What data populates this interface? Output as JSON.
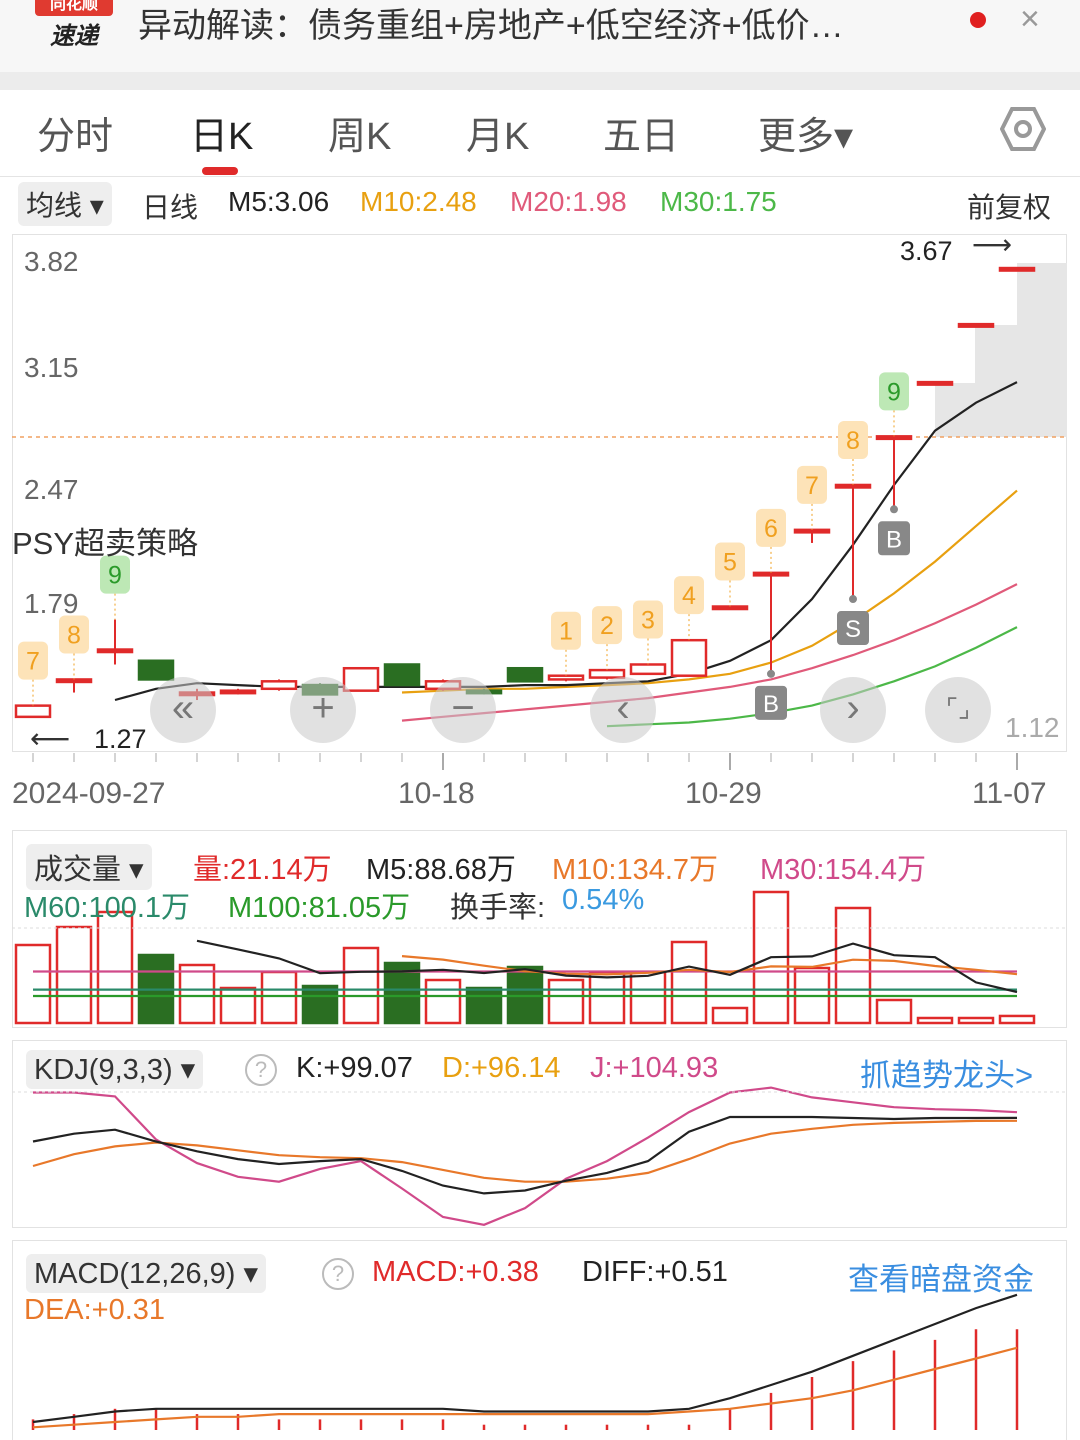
{
  "header": {
    "logo_top": "同花顺",
    "logo_bottom": "速递",
    "title": "异动解读：债务重组+房地产+低空经济+低价…",
    "close": "×"
  },
  "tabs": [
    {
      "label": "分时"
    },
    {
      "label": "日K",
      "active": true
    },
    {
      "label": "周K"
    },
    {
      "label": "月K"
    },
    {
      "label": "五日"
    },
    {
      "label": "更多▾"
    }
  ],
  "settings_icon": "hexagon-gear-icon",
  "ma_bar": {
    "selector": "均线 ▾",
    "period": "日线",
    "m5": "M5:3.06",
    "m10": "M10:2.48",
    "m20": "M20:1.98",
    "m30": "M30:1.75",
    "adjust": "前复权"
  },
  "colors": {
    "up": "#e02a2a",
    "down": "#2a6e22",
    "m5": "#222222",
    "m10": "#e8a010",
    "m20": "#e05a7a",
    "m30": "#4cb848",
    "accent": "#3a8ee0"
  },
  "price_chart": {
    "y_labels": [
      "3.82",
      "3.15",
      "2.47",
      "1.79",
      "1.12"
    ],
    "max_label": "3.67",
    "min_label": "1.27",
    "strategy": "PSY超卖策略",
    "dates": [
      "2024-09-27",
      "10-18",
      "10-29",
      "11-07"
    ],
    "candles": [
      [
        1.27,
        1.33,
        1.27,
        1.33
      ],
      [
        1.47,
        1.47,
        1.4,
        1.47
      ],
      [
        1.63,
        1.79,
        1.55,
        1.63
      ],
      [
        1.57,
        1.57,
        1.47,
        1.47
      ],
      [
        1.4,
        1.42,
        1.36,
        1.4
      ],
      [
        1.4,
        1.42,
        1.39,
        1.41
      ],
      [
        1.42,
        1.47,
        1.41,
        1.46
      ],
      [
        1.44,
        1.45,
        1.39,
        1.39
      ],
      [
        1.41,
        1.53,
        1.41,
        1.53
      ],
      [
        1.55,
        1.55,
        1.44,
        1.44
      ],
      [
        1.42,
        1.47,
        1.41,
        1.46
      ],
      [
        1.41,
        1.42,
        1.39,
        1.4
      ],
      [
        1.53,
        1.53,
        1.46,
        1.46
      ],
      [
        1.47,
        1.49,
        1.46,
        1.49
      ],
      [
        1.48,
        1.52,
        1.47,
        1.52
      ],
      [
        1.5,
        1.55,
        1.5,
        1.55
      ],
      [
        1.49,
        1.68,
        1.49,
        1.68
      ],
      [
        1.86,
        1.86,
        1.86,
        1.86
      ],
      [
        2.04,
        2.04,
        1.5,
        2.04
      ],
      [
        2.27,
        2.27,
        2.2,
        2.27
      ],
      [
        2.51,
        2.51,
        1.9,
        2.51
      ],
      [
        2.77,
        2.77,
        2.38,
        2.77
      ],
      [
        3.06,
        3.06,
        3.06,
        3.06
      ],
      [
        3.37,
        3.37,
        3.37,
        3.37
      ],
      [
        3.67,
        3.67,
        3.67,
        3.67
      ]
    ],
    "ma5": [
      null,
      null,
      1.36,
      1.42,
      1.45,
      1.44,
      1.43,
      1.43,
      1.43,
      1.43,
      1.43,
      1.43,
      1.44,
      1.44,
      1.45,
      1.46,
      1.5,
      1.57,
      1.68,
      1.9,
      2.19,
      2.51,
      2.8,
      2.95,
      3.06
    ],
    "ma10": [
      null,
      null,
      null,
      null,
      null,
      null,
      null,
      null,
      null,
      1.4,
      1.41,
      1.42,
      1.42,
      1.43,
      1.44,
      1.45,
      1.47,
      1.5,
      1.56,
      1.65,
      1.78,
      1.93,
      2.1,
      2.29,
      2.48
    ],
    "ma20": [
      null,
      null,
      null,
      null,
      null,
      null,
      null,
      null,
      null,
      1.25,
      1.27,
      1.29,
      1.31,
      1.33,
      1.35,
      1.37,
      1.4,
      1.43,
      1.47,
      1.53,
      1.6,
      1.68,
      1.77,
      1.87,
      1.98
    ],
    "ma30": [
      null,
      null,
      null,
      null,
      null,
      null,
      null,
      null,
      null,
      null,
      null,
      null,
      null,
      null,
      1.22,
      1.23,
      1.24,
      1.26,
      1.29,
      1.33,
      1.39,
      1.46,
      1.54,
      1.64,
      1.75
    ],
    "seq": [
      {
        "i": 0,
        "n": "7"
      },
      {
        "i": 1,
        "n": "8"
      },
      {
        "i": 2,
        "n": "9"
      },
      {
        "i": 13,
        "n": "1"
      },
      {
        "i": 14,
        "n": "2"
      },
      {
        "i": 15,
        "n": "3"
      },
      {
        "i": 16,
        "n": "4"
      },
      {
        "i": 17,
        "n": "5"
      },
      {
        "i": 18,
        "n": "6"
      },
      {
        "i": 19,
        "n": "7"
      },
      {
        "i": 20,
        "n": "8"
      },
      {
        "i": 21,
        "n": "9"
      }
    ],
    "signals": [
      {
        "i": 18,
        "t": "B"
      },
      {
        "i": 20,
        "t": "S"
      },
      {
        "i": 21,
        "t": "B"
      }
    ],
    "controls": [
      "«",
      "+",
      "−",
      "‹",
      "›",
      "⌜⌟"
    ]
  },
  "volume": {
    "selector": "成交量 ▾",
    "vol": "量:21.14万",
    "m5": "M5:88.68万",
    "m10": "M10:134.7万",
    "m30": "M30:154.4万",
    "m60": "M60:100.1万",
    "m100": "M100:81.05万",
    "turnover_label": "换手率:",
    "turnover": "0.54%",
    "values": [
      234,
      288,
      333,
      204,
      174,
      105,
      153,
      111,
      225,
      180,
      129,
      105,
      168,
      129,
      153,
      153,
      243,
      45,
      393,
      165,
      345,
      69,
      15,
      15,
      21.14
    ],
    "m30_level": 154.4,
    "m60_level": 100.1,
    "m100_level": 81.05
  },
  "kdj": {
    "selector": "KDJ(9,3,3) ▾",
    "help": "?",
    "k": "K:+99.07",
    "d": "D:+96.14",
    "j": "J:+104.93",
    "link": "抓趋势龙头>",
    "K": [
      75,
      83,
      87,
      75,
      65,
      57,
      52,
      55,
      57,
      45,
      30,
      22,
      25,
      35,
      43,
      55,
      85,
      100,
      100,
      100,
      99,
      98,
      99,
      99,
      99.07
    ],
    "D": [
      50,
      62,
      70,
      74,
      71,
      66,
      61,
      59,
      58,
      54,
      46,
      38,
      34,
      34,
      37,
      43,
      57,
      73,
      83,
      88,
      92,
      94,
      95,
      96,
      96.14
    ],
    "J": [
      125,
      125,
      121,
      77,
      53,
      39,
      34,
      47,
      55,
      27,
      -2,
      -10,
      7,
      37,
      55,
      79,
      105,
      125,
      130,
      120,
      115,
      110,
      108,
      107,
      104.93
    ]
  },
  "macd": {
    "selector": "MACD(12,26,9) ▾",
    "help": "?",
    "macd": "MACD:+0.38",
    "diff": "DIFF:+0.51",
    "dea": "DEA:+0.31",
    "link": "查看暗盘资金",
    "DIFF": [
      0.03,
      0.05,
      0.07,
      0.08,
      0.08,
      0.08,
      0.08,
      0.08,
      0.08,
      0.08,
      0.08,
      0.07,
      0.07,
      0.07,
      0.07,
      0.07,
      0.08,
      0.12,
      0.17,
      0.22,
      0.28,
      0.34,
      0.4,
      0.46,
      0.51
    ],
    "DEA": [
      0.01,
      0.02,
      0.03,
      0.04,
      0.05,
      0.05,
      0.06,
      0.06,
      0.06,
      0.06,
      0.06,
      0.06,
      0.06,
      0.06,
      0.06,
      0.06,
      0.07,
      0.08,
      0.1,
      0.12,
      0.15,
      0.19,
      0.23,
      0.27,
      0.31
    ],
    "MACD": [
      0.04,
      0.06,
      0.08,
      0.08,
      0.06,
      0.06,
      0.04,
      0.04,
      0.04,
      0.04,
      0.04,
      0.02,
      0.02,
      0.02,
      0.02,
      0.02,
      0.02,
      0.08,
      0.14,
      0.2,
      0.26,
      0.3,
      0.34,
      0.38,
      0.38
    ]
  }
}
